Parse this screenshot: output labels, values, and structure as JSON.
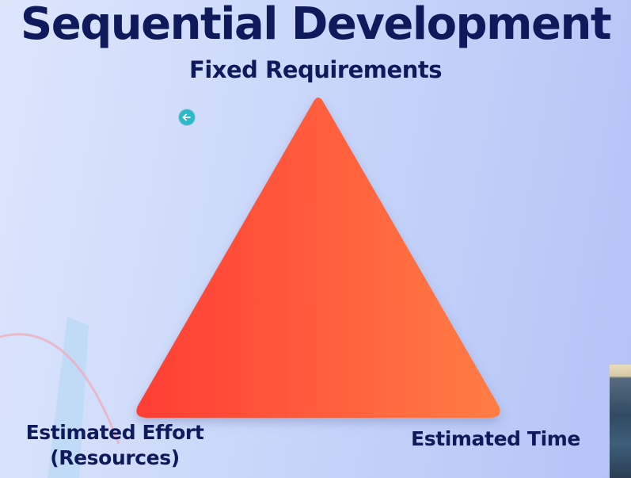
{
  "slide": {
    "title": "Sequential Development",
    "top_label": "Fixed Requirements",
    "bottom_left_label_line1": "Estimated Effort",
    "bottom_left_label_line2": "(Resources)",
    "bottom_right_label": "Estimated Time"
  },
  "colors": {
    "title": "#0f1a5c",
    "triangle_left": "#ff3d34",
    "triangle_right": "#ff7d45",
    "cursor": "#2cb9c9"
  },
  "icons": {
    "cursor": "arrow-left-circle-icon"
  }
}
